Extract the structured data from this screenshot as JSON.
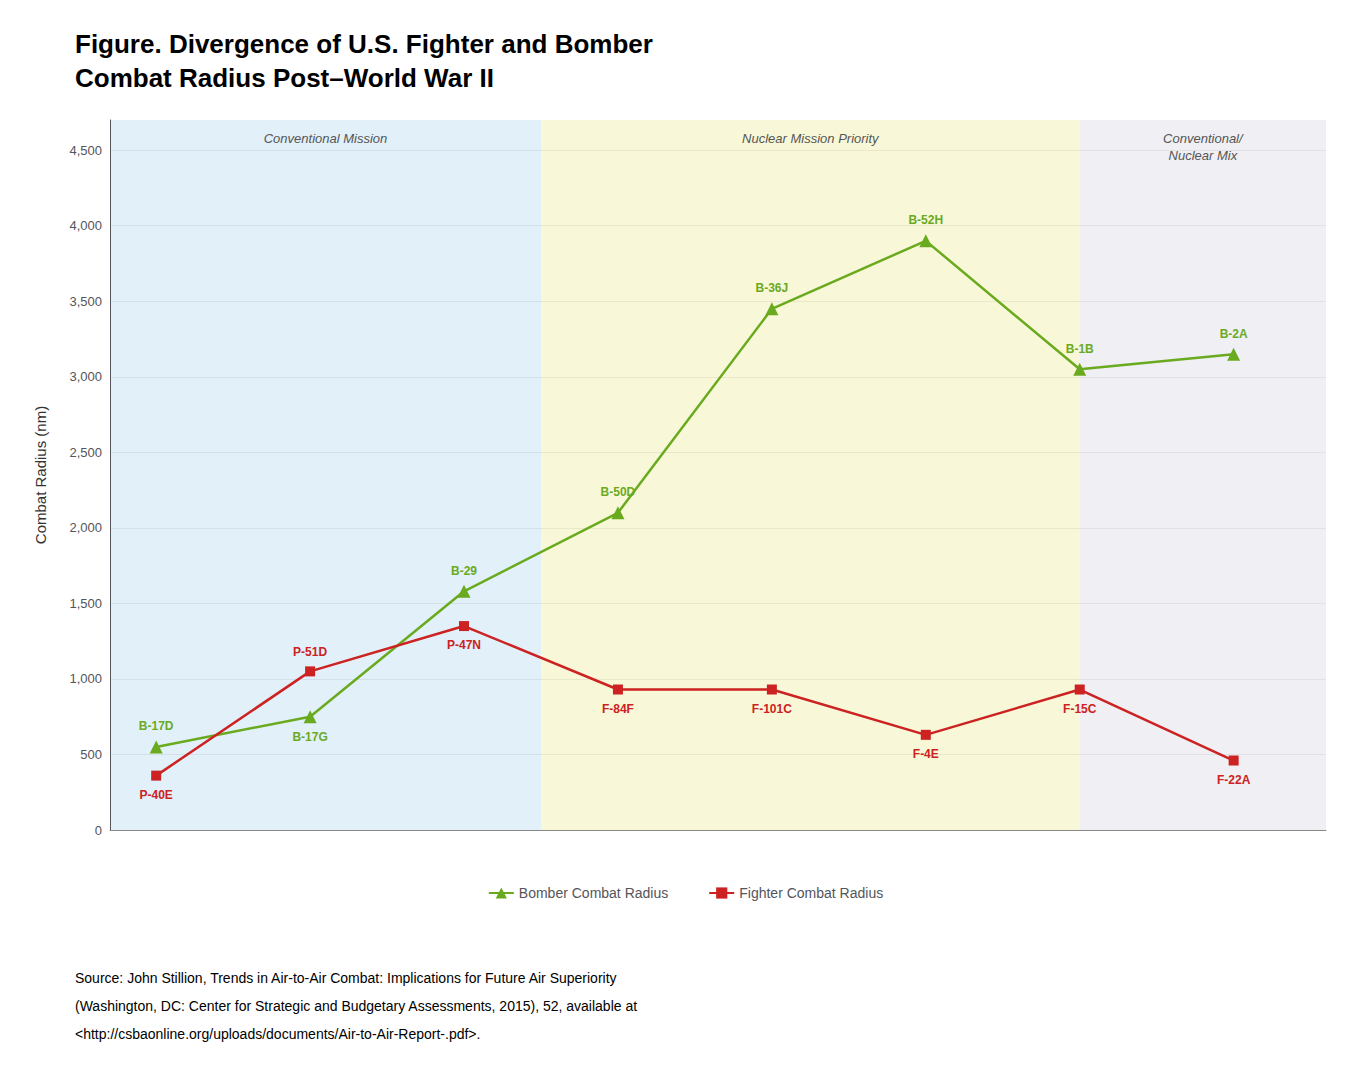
{
  "chart_data": {
    "type": "line",
    "title": "Figure. Divergence of U.S. Fighter and Bomber\nCombat Radius Post–World War II",
    "ylabel": "Combat Radius (nm)",
    "x": [
      1,
      2,
      3,
      4,
      5,
      6,
      7,
      8
    ],
    "xlim": [
      0.7,
      8.6
    ],
    "ylim": [
      0,
      4700
    ],
    "yticks": [
      0,
      500,
      {
        "value": 1000,
        "label": "1,000"
      },
      {
        "value": 1500,
        "label": "1,500"
      },
      {
        "value": 2000,
        "label": "2,000"
      },
      {
        "value": 2500,
        "label": "2,500"
      },
      {
        "value": 3000,
        "label": "3,000"
      },
      {
        "value": 3500,
        "label": "3,500"
      },
      {
        "value": 4000,
        "label": "4,000"
      },
      {
        "value": 4500,
        "label": "4,500"
      }
    ],
    "grid": true,
    "legend": "bottom",
    "tick_labels": "y",
    "series": [
      {
        "name": "Bomber Combat Radius",
        "color": "#6aaa1e",
        "marker": "triangle",
        "values": [
          550,
          750,
          1580,
          2100,
          3450,
          3900,
          3050,
          3150
        ],
        "annotations": [
          "B-17D",
          "B-17G",
          "B-29",
          "B-50D",
          "B-36J",
          "B-52H",
          "B-1B",
          "B-2A"
        ]
      },
      {
        "name": "Fighter Combat Radius",
        "color": "#cc2222",
        "marker": "square",
        "values": [
          360,
          1050,
          1350,
          930,
          930,
          630,
          930,
          460
        ],
        "annotations": [
          "P-40E",
          "P-51D",
          "P-47N",
          "F-84F",
          "F-101C",
          "F-4E",
          "F-15C",
          "F-22A"
        ]
      }
    ],
    "regions": [
      {
        "label": "Conventional Mission",
        "from": 0.7,
        "to": 3.5,
        "color": "#d6eaf8"
      },
      {
        "label": "Nuclear Mission Priority",
        "from": 3.5,
        "to": 7.0,
        "color": "#f5f5c8"
      },
      {
        "label": "Conventional/\nNuclear Mix",
        "from": 7.0,
        "to": 8.6,
        "color": "#e8e8f0"
      }
    ],
    "source": [
      "Source: John Stillion, Trends in Air-to-Air Combat: Implications for Future Air Superiority",
      "(Washington, DC: Center for Strategic and Budgetary Assessments, 2015), 52, available at",
      "<http://csbaonline.org/uploads/documents/Air-to-Air-Report-.pdf>."
    ]
  }
}
